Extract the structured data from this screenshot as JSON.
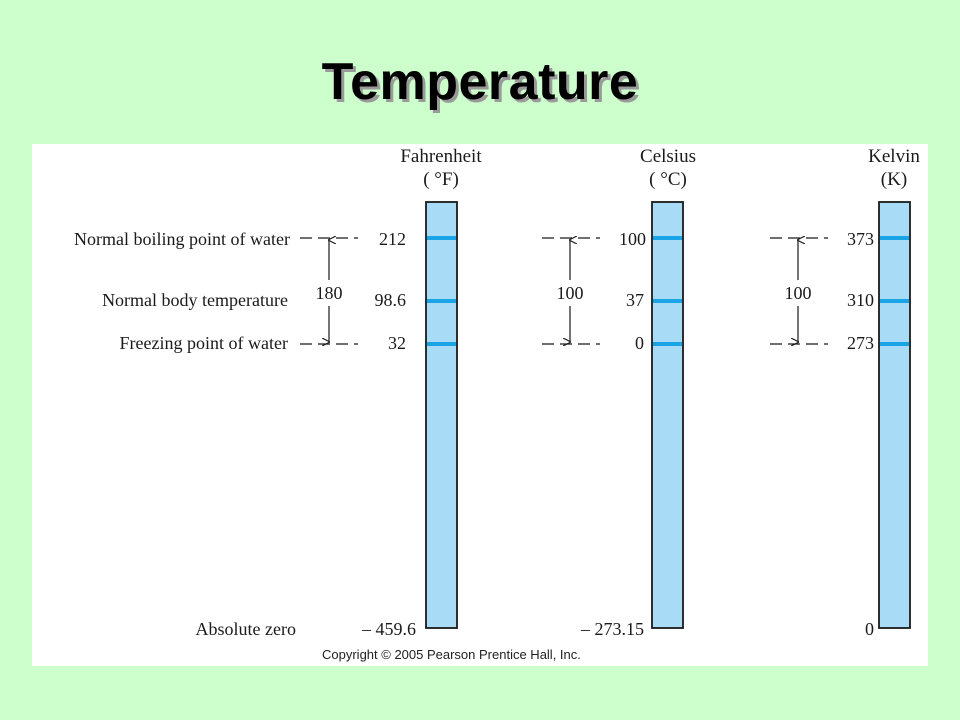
{
  "title": "Temperature",
  "scales": [
    {
      "name": "Fahrenheit",
      "unit": "( °F)",
      "boiling": "212",
      "body": "98.6",
      "freezing": "32",
      "absolute_zero": "– 459.6",
      "interval": "180"
    },
    {
      "name": "Celsius",
      "unit": "( °C)",
      "boiling": "100",
      "body": "37",
      "freezing": "0",
      "absolute_zero": "– 273.15",
      "interval": "100"
    },
    {
      "name": "Kelvin",
      "unit": "(K)",
      "boiling": "373",
      "body": "310",
      "freezing": "273",
      "absolute_zero": "0",
      "interval": "100"
    }
  ],
  "reference_labels": {
    "boiling": "Normal boiling point of water",
    "body": "Normal body temperature",
    "freezing": "Freezing point of water",
    "absolute_zero": "Absolute zero"
  },
  "copyright": "Copyright © 2005 Pearson Prentice Hall, Inc.",
  "colors": {
    "background": "#ccffcc",
    "thermometer_fill": "#a8dcf6",
    "marker": "#1aa3e6",
    "outline": "#1a1a1a"
  }
}
